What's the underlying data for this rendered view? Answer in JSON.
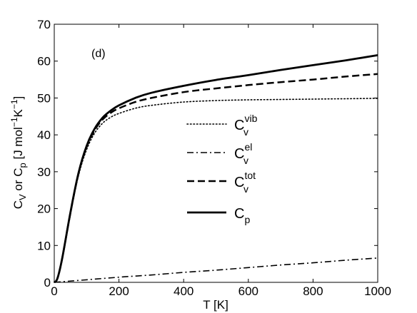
{
  "chart_data": {
    "type": "line",
    "annotation": "(d)",
    "xlabel": "T [K]",
    "ylabel": "C_V or C_p [J mol^-1 K^-1]",
    "xlim": [
      0,
      1000
    ],
    "ylim": [
      0,
      70
    ],
    "xticks": [
      0,
      200,
      400,
      600,
      800,
      1000
    ],
    "yticks": [
      0,
      10,
      20,
      30,
      40,
      50,
      60,
      70
    ],
    "grid": false,
    "legend_position": "center-right",
    "series": [
      {
        "name": "C_v^vib",
        "style": "dotted",
        "color": "#000000",
        "x": [
          0,
          10,
          25,
          50,
          75,
          100,
          125,
          150,
          175,
          200,
          250,
          300,
          400,
          500,
          600,
          700,
          800,
          900,
          1000
        ],
        "y": [
          0,
          1.0,
          6.5,
          18.5,
          29,
          36,
          40.5,
          43.2,
          44.8,
          45.8,
          47.2,
          48.0,
          48.9,
          49.3,
          49.5,
          49.6,
          49.7,
          49.8,
          49.9
        ]
      },
      {
        "name": "C_v^el",
        "style": "dashdot",
        "color": "#000000",
        "x": [
          0,
          100,
          200,
          300,
          400,
          500,
          600,
          700,
          800,
          900,
          1000
        ],
        "y": [
          0,
          0.7,
          1.4,
          2.0,
          2.7,
          3.3,
          4.0,
          4.7,
          5.3,
          6.0,
          6.6
        ]
      },
      {
        "name": "C_v^tot",
        "style": "dashed",
        "color": "#000000",
        "x": [
          0,
          10,
          25,
          50,
          75,
          100,
          125,
          150,
          175,
          200,
          250,
          300,
          400,
          500,
          600,
          700,
          800,
          900,
          1000
        ],
        "y": [
          0,
          1.1,
          6.7,
          18.9,
          29.5,
          36.7,
          41.3,
          44.2,
          46.0,
          47.2,
          48.9,
          50.0,
          51.6,
          52.6,
          53.5,
          54.3,
          55.0,
          55.8,
          56.5
        ]
      },
      {
        "name": "C_p",
        "style": "solid",
        "color": "#000000",
        "x": [
          0,
          10,
          25,
          50,
          75,
          100,
          125,
          150,
          175,
          200,
          250,
          300,
          400,
          500,
          600,
          700,
          800,
          900,
          1000
        ],
        "y": [
          0,
          1.1,
          6.7,
          19.0,
          29.7,
          37.0,
          41.7,
          44.7,
          46.6,
          48.0,
          50.0,
          51.4,
          53.3,
          54.9,
          56.2,
          57.6,
          58.9,
          60.2,
          61.6
        ]
      }
    ]
  }
}
